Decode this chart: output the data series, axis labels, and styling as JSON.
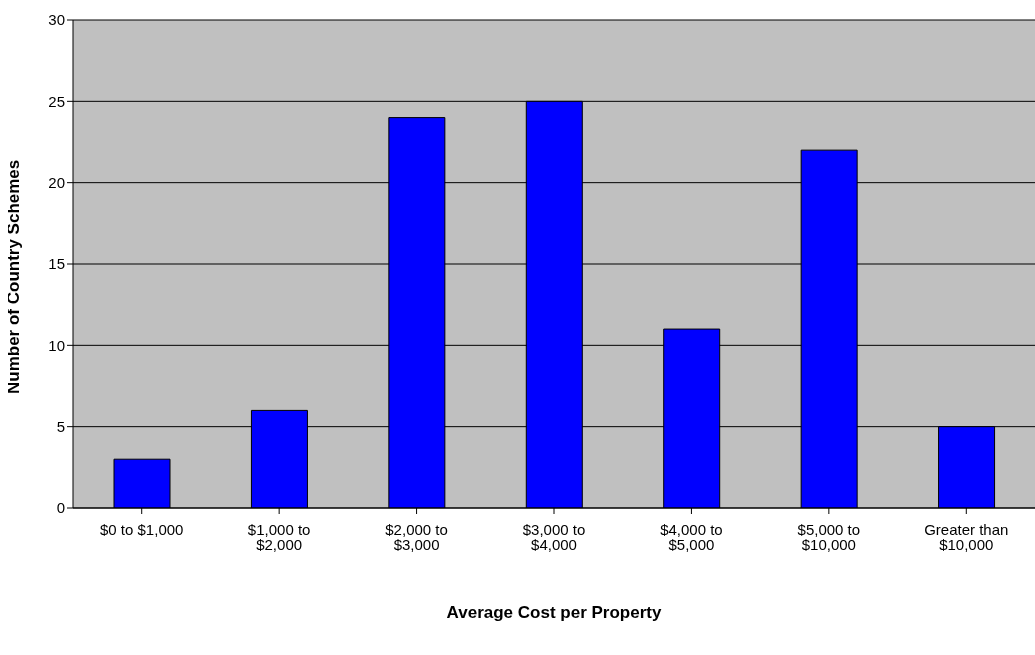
{
  "chart_data": {
    "type": "bar",
    "xlabel": "Average Cost per Property",
    "ylabel": "Number of Country Schemes",
    "categories": [
      "$0 to $1,000",
      "$1,000 to $2,000",
      "$2,000 to $3,000",
      "$3,000 to $4,000",
      "$4,000 to $5,000",
      "$5,000 to $10,000",
      "Greater than $10,000"
    ],
    "values": [
      3,
      6,
      24,
      25,
      11,
      22,
      5
    ],
    "color": "#0000ff",
    "ylim": [
      0,
      30
    ],
    "yticks": [
      0,
      5,
      10,
      15,
      20,
      25,
      30
    ],
    "grid": "y",
    "legend": false
  }
}
